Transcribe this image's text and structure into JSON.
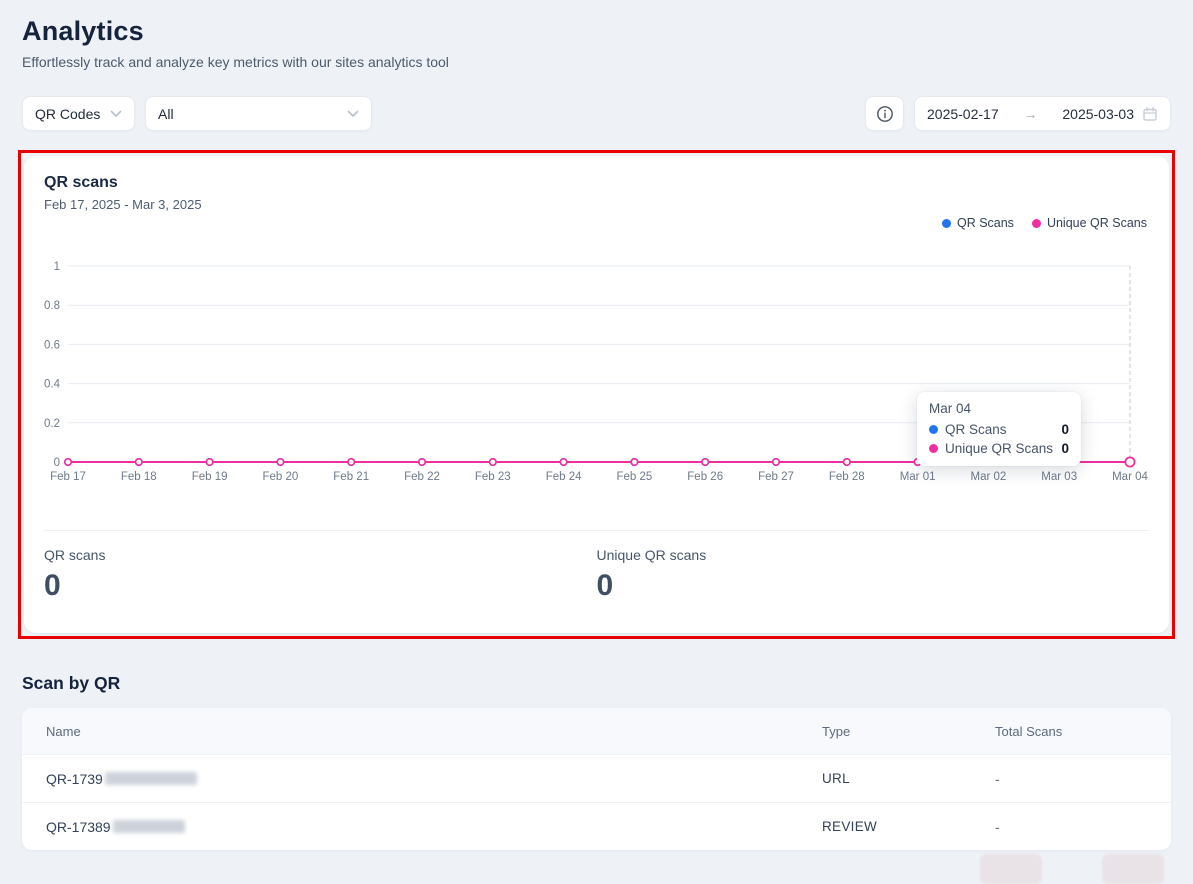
{
  "page": {
    "title": "Analytics",
    "subtitle": "Effortlessly track and analyze key metrics with our sites analytics tool"
  },
  "filters": {
    "type_dropdown": {
      "value": "QR Codes"
    },
    "scope_dropdown": {
      "value": "All"
    },
    "date_range": {
      "start": "2025-02-17",
      "arrow": "→",
      "end": "2025-03-03"
    }
  },
  "chart_card": {
    "title": "QR scans",
    "date_range": "Feb 17, 2025 - Mar 3, 2025",
    "legend": [
      {
        "label": "QR Scans",
        "color": "#2173f2"
      },
      {
        "label": "Unique QR Scans",
        "color": "#ee2f9f"
      }
    ],
    "tooltip": {
      "title": "Mar 04",
      "rows": [
        {
          "label": "QR Scans",
          "value": "0"
        },
        {
          "label": "Unique QR Scans",
          "value": "0"
        }
      ]
    },
    "stats": [
      {
        "label": "QR scans",
        "value": "0"
      },
      {
        "label": "Unique QR scans",
        "value": "0"
      }
    ]
  },
  "chart_data": {
    "type": "line",
    "title": "QR scans",
    "categories": [
      "Feb 17",
      "Feb 18",
      "Feb 19",
      "Feb 20",
      "Feb 21",
      "Feb 22",
      "Feb 23",
      "Feb 24",
      "Feb 25",
      "Feb 26",
      "Feb 27",
      "Feb 28",
      "Mar 01",
      "Mar 02",
      "Mar 03",
      "Mar 04"
    ],
    "series": [
      {
        "name": "QR Scans",
        "color": "#2173f2",
        "values": [
          0,
          0,
          0,
          0,
          0,
          0,
          0,
          0,
          0,
          0,
          0,
          0,
          0,
          0,
          0,
          0
        ]
      },
      {
        "name": "Unique QR Scans",
        "color": "#ee2f9f",
        "values": [
          0,
          0,
          0,
          0,
          0,
          0,
          0,
          0,
          0,
          0,
          0,
          0,
          0,
          0,
          0,
          0
        ]
      }
    ],
    "ylim": [
      0,
      1
    ],
    "yticks": [
      0,
      0.2,
      0.4,
      0.6,
      0.8,
      1
    ],
    "grid": true,
    "legend_position": "top-right",
    "hover_index": 15,
    "hover_label": "Mar 04"
  },
  "scan_table": {
    "title": "Scan by QR",
    "columns": [
      "Name",
      "Type",
      "Total Scans"
    ],
    "rows": [
      {
        "name_visible": "QR-1739",
        "type": "URL",
        "total_scans": "-"
      },
      {
        "name_visible": "QR-17389",
        "type": "REVIEW",
        "total_scans": "-"
      }
    ]
  },
  "annotation": {
    "highlight_color": "#e80000"
  },
  "colors": {
    "background": "#eef2f7",
    "qr_scans_series": "#2173f2",
    "unique_qr_scans_series": "#ee2f9f",
    "grid_line": "#e7ecf2",
    "axis_label": "#6e7a8a"
  }
}
